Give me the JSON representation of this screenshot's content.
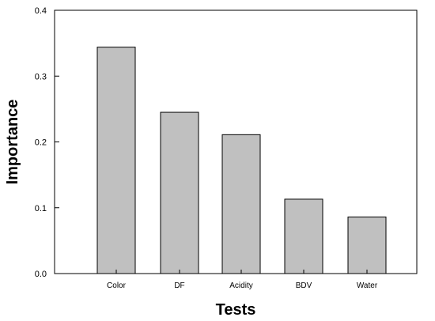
{
  "chart_data": {
    "type": "bar",
    "categories": [
      "Color",
      "DF",
      "Acidity",
      "BDV",
      "Water"
    ],
    "values": [
      0.344,
      0.245,
      0.211,
      0.113,
      0.086
    ],
    "xlabel": "Tests",
    "ylabel": "Importance",
    "ylim": [
      0,
      0.4
    ],
    "yticks": [
      "0.0",
      "0.1",
      "0.2",
      "0.3",
      "0.4"
    ],
    "ytick_values": [
      0,
      0.1,
      0.2,
      0.3,
      0.4
    ],
    "grid": false,
    "legend": "none",
    "bar_color": "#c0c0c0",
    "bar_edge_color": "#000000"
  }
}
